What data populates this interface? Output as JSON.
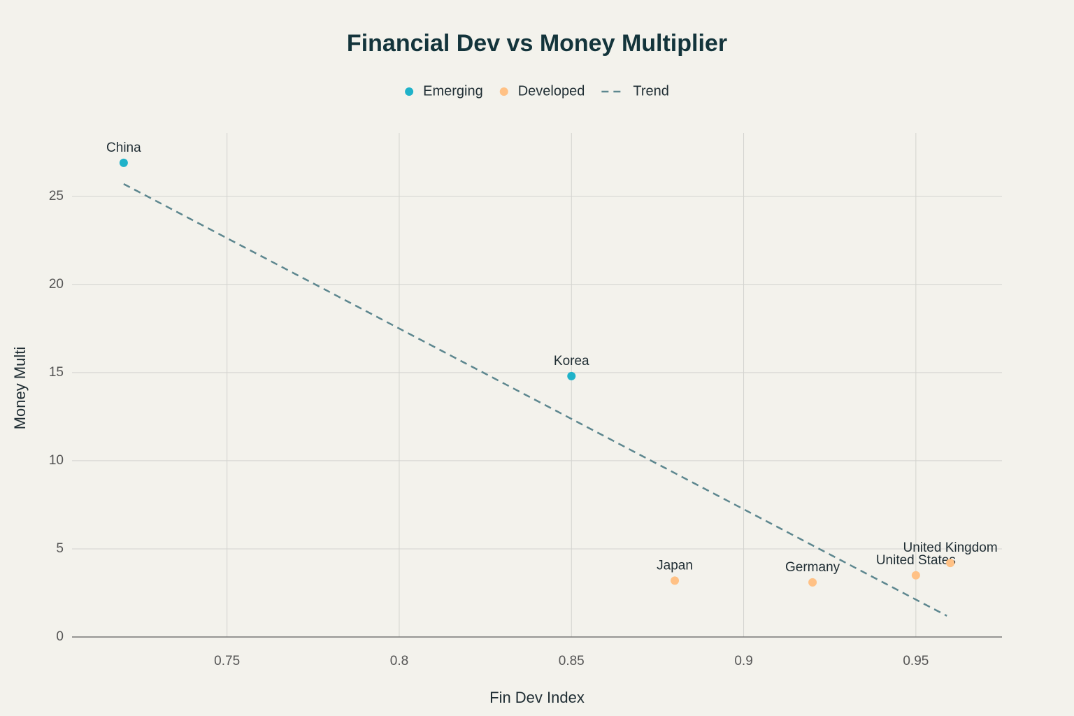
{
  "chart_data": {
    "type": "scatter",
    "title": "Financial Dev vs Money Multiplier",
    "x_label": "Fin Dev Index",
    "y_label": "Money Multi",
    "xlim": [
      0.705,
      0.975
    ],
    "ylim": [
      0,
      28.6
    ],
    "xticks": [
      0.75,
      0.8,
      0.85,
      0.9,
      0.95
    ],
    "yticks": [
      0,
      5,
      10,
      15,
      20,
      25
    ],
    "grid": true,
    "legend": "top",
    "series": [
      {
        "name": "Emerging",
        "color": "#1fb2c9",
        "mode": "markers",
        "labels": [
          "China",
          "Korea"
        ],
        "x": [
          0.72,
          0.85
        ],
        "y": [
          26.9,
          14.8
        ]
      },
      {
        "name": "Developed",
        "color": "#ffc185",
        "mode": "markers",
        "labels": [
          "Japan",
          "Germany",
          "United States",
          "United Kingdom"
        ],
        "x": [
          0.88,
          0.92,
          0.95,
          0.96
        ],
        "y": [
          3.2,
          3.1,
          3.5,
          4.2
        ]
      },
      {
        "name": "Trend",
        "color": "#5d878f",
        "mode": "dashed-line",
        "x": [
          0.72,
          0.959
        ],
        "y": [
          25.7,
          1.2
        ]
      }
    ]
  }
}
